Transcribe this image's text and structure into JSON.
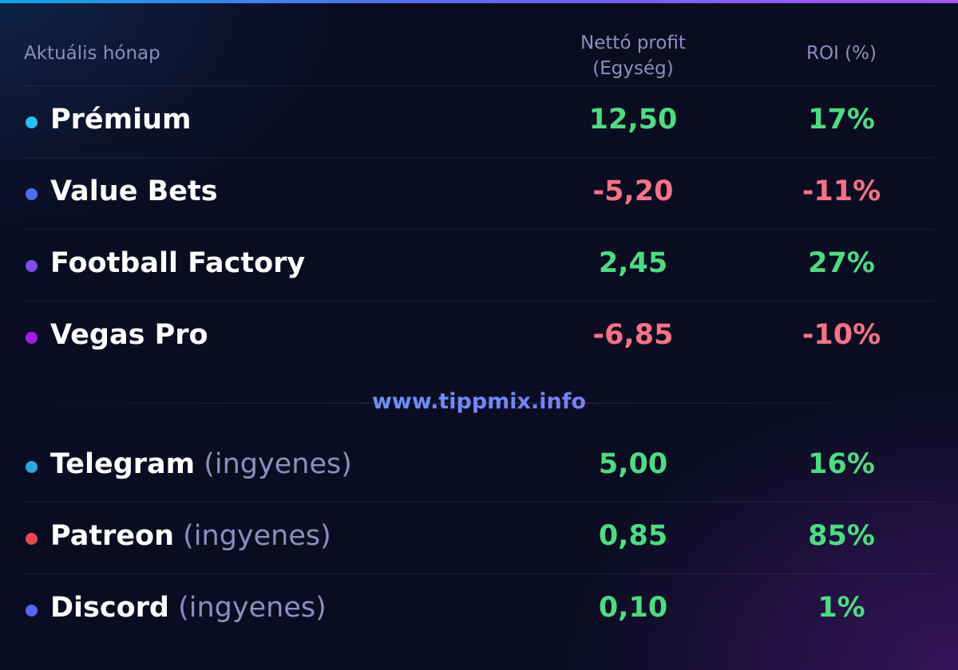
{
  "table": {
    "header": [
      "Aktuális hónap",
      "Nettó profit (Egység)",
      "ROI (%)"
    ],
    "rows": [
      {
        "name": "Prémium",
        "dot": "#22c3f0",
        "profit": "12,50",
        "roi": "17%",
        "color": "#4ade80"
      },
      {
        "name": "Value Bets",
        "dot": "#4f6df5",
        "profit": "-5,20",
        "roi": "-11%",
        "color": "#fb7185"
      },
      {
        "name": "Football Factory",
        "dot": "#7c4df0",
        "profit": "2,45",
        "roi": "27%",
        "color": "#4ade80"
      },
      {
        "name": "Vegas Pro",
        "dot": "#a21ee8",
        "profit": "-6,85",
        "roi": "-10%",
        "color": "#fb7185"
      }
    ],
    "watermark": "www.tippmix.info",
    "free_rows": [
      {
        "name": "Telegram",
        "note": "(ingyenes)",
        "dot": "#2aa8e0",
        "profit": "5,00",
        "roi": "16%",
        "color": "#4ade80"
      },
      {
        "name": "Patreon",
        "note": "(ingyenes)",
        "dot": "#f2434f",
        "profit": "0,85",
        "roi": "85%",
        "color": "#4ade80"
      },
      {
        "name": "Discord",
        "note": "(ingyenes)",
        "dot": "#5865f2",
        "profit": "0,10",
        "roi": "1%",
        "color": "#4ade80"
      }
    ]
  }
}
